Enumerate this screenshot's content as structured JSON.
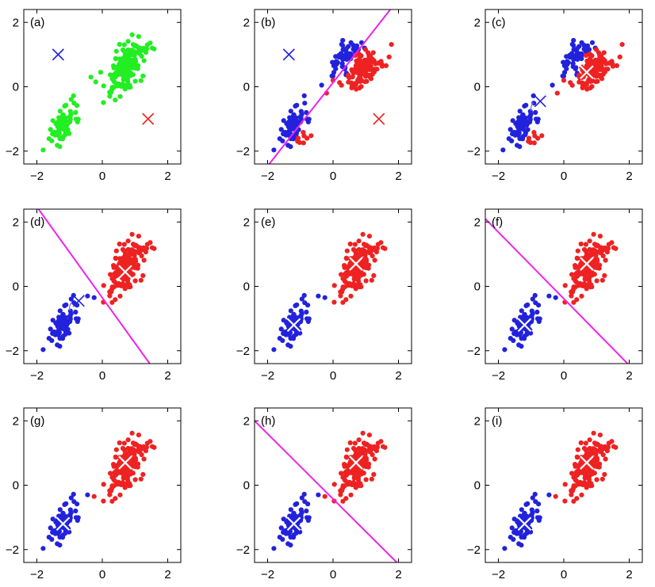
{
  "colors": {
    "green": "#22ee22",
    "blue": "#2222dd",
    "red": "#ee2222",
    "magenta": "#ee22ee",
    "frame": "#000000"
  },
  "axis_ticks": {
    "x": [
      "−2",
      "0",
      "2"
    ],
    "y": [
      "2",
      "0",
      "−2"
    ]
  },
  "chart_data": [
    {
      "type": "scatter",
      "label": "(a)",
      "xlim": [
        -2.4,
        2.4
      ],
      "ylim": [
        -2.4,
        2.4
      ],
      "xticks": [
        -2,
        0,
        2
      ],
      "yticks": [
        -2,
        0,
        2
      ],
      "clusters": [
        {
          "color": "green",
          "center": [
            -1.2,
            -1.15
          ],
          "n": 75,
          "spread": 0.22,
          "rho": 0.55
        },
        {
          "color": "green",
          "center": [
            0.75,
            0.7
          ],
          "n": 175,
          "spread": 0.3,
          "rho": 0.6
        }
      ],
      "bridge_points": [
        [
          -0.35,
          0.3,
          "green"
        ],
        [
          -0.2,
          0.15,
          "green"
        ],
        [
          -0.05,
          0.45,
          "green"
        ]
      ],
      "centroids": [
        {
          "color": "blue",
          "x": -1.35,
          "y": 1.0,
          "style": "plain"
        },
        {
          "color": "red",
          "x": 1.4,
          "y": -1.0,
          "style": "plain"
        }
      ],
      "boundary": null
    },
    {
      "type": "scatter",
      "label": "(b)",
      "xlim": [
        -2.4,
        2.4
      ],
      "ylim": [
        -2.4,
        2.4
      ],
      "xticks": [
        -2,
        0,
        2
      ],
      "yticks": [
        -2,
        0,
        2
      ],
      "clusters": [
        {
          "color": "blue",
          "center": [
            -1.2,
            -1.15
          ],
          "n": 70,
          "spread": 0.22,
          "rho": 0.55
        },
        {
          "color": "blue",
          "center": [
            0.35,
            0.95
          ],
          "n": 55,
          "spread": 0.22,
          "rho": 0.5
        },
        {
          "color": "red",
          "center": [
            0.95,
            0.55
          ],
          "n": 120,
          "spread": 0.25,
          "rho": 0.5
        },
        {
          "color": "red",
          "center": [
            -0.9,
            -1.7
          ],
          "n": 8,
          "spread": 0.12,
          "rho": 0.3
        }
      ],
      "bridge_points": [
        [
          -0.35,
          0.05,
          "blue"
        ],
        [
          -0.2,
          -0.2,
          "red"
        ],
        [
          0.0,
          0.2,
          "red"
        ]
      ],
      "centroids": [
        {
          "color": "blue",
          "x": -1.35,
          "y": 1.0,
          "style": "plain"
        },
        {
          "color": "red",
          "x": 1.4,
          "y": -1.0,
          "style": "plain"
        }
      ],
      "boundary": {
        "color": "magenta",
        "x1": -1.95,
        "y1": -2.4,
        "x2": 1.75,
        "y2": 2.4
      }
    },
    {
      "type": "scatter",
      "label": "(c)",
      "xlim": [
        -2.4,
        2.4
      ],
      "ylim": [
        -2.4,
        2.4
      ],
      "xticks": [
        -2,
        0,
        2
      ],
      "yticks": [
        -2,
        0,
        2
      ],
      "clusters": [
        {
          "color": "blue",
          "center": [
            -1.25,
            -1.15
          ],
          "n": 70,
          "spread": 0.22,
          "rho": 0.55
        },
        {
          "color": "blue",
          "center": [
            0.35,
            0.95
          ],
          "n": 55,
          "spread": 0.22,
          "rho": 0.5
        },
        {
          "color": "red",
          "center": [
            0.95,
            0.55
          ],
          "n": 120,
          "spread": 0.25,
          "rho": 0.5
        },
        {
          "color": "red",
          "center": [
            -0.9,
            -1.7
          ],
          "n": 8,
          "spread": 0.12,
          "rho": 0.3
        }
      ],
      "bridge_points": [
        [
          -0.35,
          0.05,
          "blue"
        ],
        [
          -0.2,
          -0.2,
          "red"
        ],
        [
          0.0,
          0.2,
          "red"
        ]
      ],
      "centroids": [
        {
          "color": "blue",
          "x": -0.72,
          "y": -0.45,
          "style": "trail"
        },
        {
          "color": "red",
          "x": 0.7,
          "y": 0.45,
          "style": "highlight"
        }
      ],
      "boundary": null
    },
    {
      "type": "scatter",
      "label": "(d)",
      "xlim": [
        -2.4,
        2.4
      ],
      "ylim": [
        -2.4,
        2.4
      ],
      "xticks": [
        -2,
        0,
        2
      ],
      "yticks": [
        -2,
        0,
        2
      ],
      "clusters": [
        {
          "color": "blue",
          "center": [
            -1.2,
            -1.15
          ],
          "n": 75,
          "spread": 0.22,
          "rho": 0.55
        },
        {
          "color": "red",
          "center": [
            0.75,
            0.7
          ],
          "n": 175,
          "spread": 0.3,
          "rho": 0.6
        }
      ],
      "bridge_points": [
        [
          -0.45,
          -0.3,
          "blue"
        ],
        [
          -0.25,
          -0.35,
          "blue"
        ],
        [
          0.3,
          -0.5,
          "red"
        ]
      ],
      "centroids": [
        {
          "color": "blue",
          "x": -0.72,
          "y": -0.45,
          "style": "trail"
        },
        {
          "color": "red",
          "x": 0.7,
          "y": 0.45,
          "style": "highlight"
        }
      ],
      "boundary": {
        "color": "magenta",
        "x1": -1.95,
        "y1": 2.4,
        "x2": 1.45,
        "y2": -2.4
      }
    },
    {
      "type": "scatter",
      "label": "(e)",
      "xlim": [
        -2.4,
        2.4
      ],
      "ylim": [
        -2.4,
        2.4
      ],
      "xticks": [
        -2,
        0,
        2
      ],
      "yticks": [
        -2,
        0,
        2
      ],
      "clusters": [
        {
          "color": "blue",
          "center": [
            -1.2,
            -1.15
          ],
          "n": 75,
          "spread": 0.22,
          "rho": 0.55
        },
        {
          "color": "red",
          "center": [
            0.75,
            0.7
          ],
          "n": 175,
          "spread": 0.3,
          "rho": 0.6
        }
      ],
      "bridge_points": [
        [
          -0.45,
          -0.3,
          "blue"
        ],
        [
          -0.25,
          -0.35,
          "blue"
        ],
        [
          0.3,
          -0.5,
          "red"
        ]
      ],
      "centroids": [
        {
          "color": "blue",
          "x": -1.2,
          "y": -1.2,
          "style": "highlight"
        },
        {
          "color": "red",
          "x": 0.7,
          "y": 0.7,
          "style": "highlight"
        }
      ],
      "boundary": null
    },
    {
      "type": "scatter",
      "label": "(f)",
      "xlim": [
        -2.4,
        2.4
      ],
      "ylim": [
        -2.4,
        2.4
      ],
      "xticks": [
        -2,
        0,
        2
      ],
      "yticks": [
        -2,
        0,
        2
      ],
      "clusters": [
        {
          "color": "blue",
          "center": [
            -1.2,
            -1.15
          ],
          "n": 75,
          "spread": 0.22,
          "rho": 0.55
        },
        {
          "color": "red",
          "center": [
            0.75,
            0.7
          ],
          "n": 175,
          "spread": 0.3,
          "rho": 0.6
        }
      ],
      "bridge_points": [
        [
          -0.45,
          -0.3,
          "blue"
        ],
        [
          -0.25,
          -0.35,
          "blue"
        ],
        [
          0.3,
          -0.5,
          "red"
        ]
      ],
      "centroids": [
        {
          "color": "blue",
          "x": -1.2,
          "y": -1.2,
          "style": "highlight"
        },
        {
          "color": "red",
          "x": 0.7,
          "y": 0.7,
          "style": "highlight"
        }
      ],
      "boundary": {
        "color": "magenta",
        "x1": -2.4,
        "y1": 2.1,
        "x2": 1.95,
        "y2": -2.4
      }
    },
    {
      "type": "scatter",
      "label": "(g)",
      "xlim": [
        -2.4,
        2.4
      ],
      "ylim": [
        -2.4,
        2.4
      ],
      "xticks": [
        -2,
        0,
        2
      ],
      "yticks": [
        -2,
        0,
        2
      ],
      "clusters": [
        {
          "color": "blue",
          "center": [
            -1.2,
            -1.15
          ],
          "n": 75,
          "spread": 0.22,
          "rho": 0.55
        },
        {
          "color": "red",
          "center": [
            0.75,
            0.7
          ],
          "n": 175,
          "spread": 0.3,
          "rho": 0.6
        }
      ],
      "bridge_points": [
        [
          -0.45,
          -0.3,
          "blue"
        ],
        [
          -0.25,
          -0.35,
          "red"
        ],
        [
          0.3,
          -0.5,
          "red"
        ]
      ],
      "centroids": [
        {
          "color": "blue",
          "x": -1.2,
          "y": -1.2,
          "style": "highlight"
        },
        {
          "color": "red",
          "x": 0.7,
          "y": 0.7,
          "style": "highlight"
        }
      ],
      "boundary": null
    },
    {
      "type": "scatter",
      "label": "(h)",
      "xlim": [
        -2.4,
        2.4
      ],
      "ylim": [
        -2.4,
        2.4
      ],
      "xticks": [
        -2,
        0,
        2
      ],
      "yticks": [
        -2,
        0,
        2
      ],
      "clusters": [
        {
          "color": "blue",
          "center": [
            -1.2,
            -1.15
          ],
          "n": 75,
          "spread": 0.22,
          "rho": 0.55
        },
        {
          "color": "red",
          "center": [
            0.75,
            0.7
          ],
          "n": 175,
          "spread": 0.3,
          "rho": 0.6
        }
      ],
      "bridge_points": [
        [
          -0.45,
          -0.3,
          "blue"
        ],
        [
          -0.25,
          -0.35,
          "red"
        ],
        [
          0.3,
          -0.5,
          "red"
        ]
      ],
      "centroids": [
        {
          "color": "blue",
          "x": -1.2,
          "y": -1.2,
          "style": "highlight"
        },
        {
          "color": "red",
          "x": 0.7,
          "y": 0.7,
          "style": "highlight"
        }
      ],
      "boundary": {
        "color": "magenta",
        "x1": -2.4,
        "y1": 2.0,
        "x2": 1.95,
        "y2": -2.4
      }
    },
    {
      "type": "scatter",
      "label": "(i)",
      "xlim": [
        -2.4,
        2.4
      ],
      "ylim": [
        -2.4,
        2.4
      ],
      "xticks": [
        -2,
        0,
        2
      ],
      "yticks": [
        -2,
        0,
        2
      ],
      "clusters": [
        {
          "color": "blue",
          "center": [
            -1.2,
            -1.15
          ],
          "n": 75,
          "spread": 0.22,
          "rho": 0.55
        },
        {
          "color": "red",
          "center": [
            0.75,
            0.7
          ],
          "n": 175,
          "spread": 0.3,
          "rho": 0.6
        }
      ],
      "bridge_points": [
        [
          -0.45,
          -0.3,
          "blue"
        ],
        [
          -0.25,
          -0.35,
          "red"
        ],
        [
          0.3,
          -0.5,
          "red"
        ]
      ],
      "centroids": [
        {
          "color": "blue",
          "x": -1.2,
          "y": -1.2,
          "style": "highlight"
        },
        {
          "color": "red",
          "x": 0.7,
          "y": 0.7,
          "style": "highlight"
        }
      ],
      "boundary": null
    }
  ]
}
